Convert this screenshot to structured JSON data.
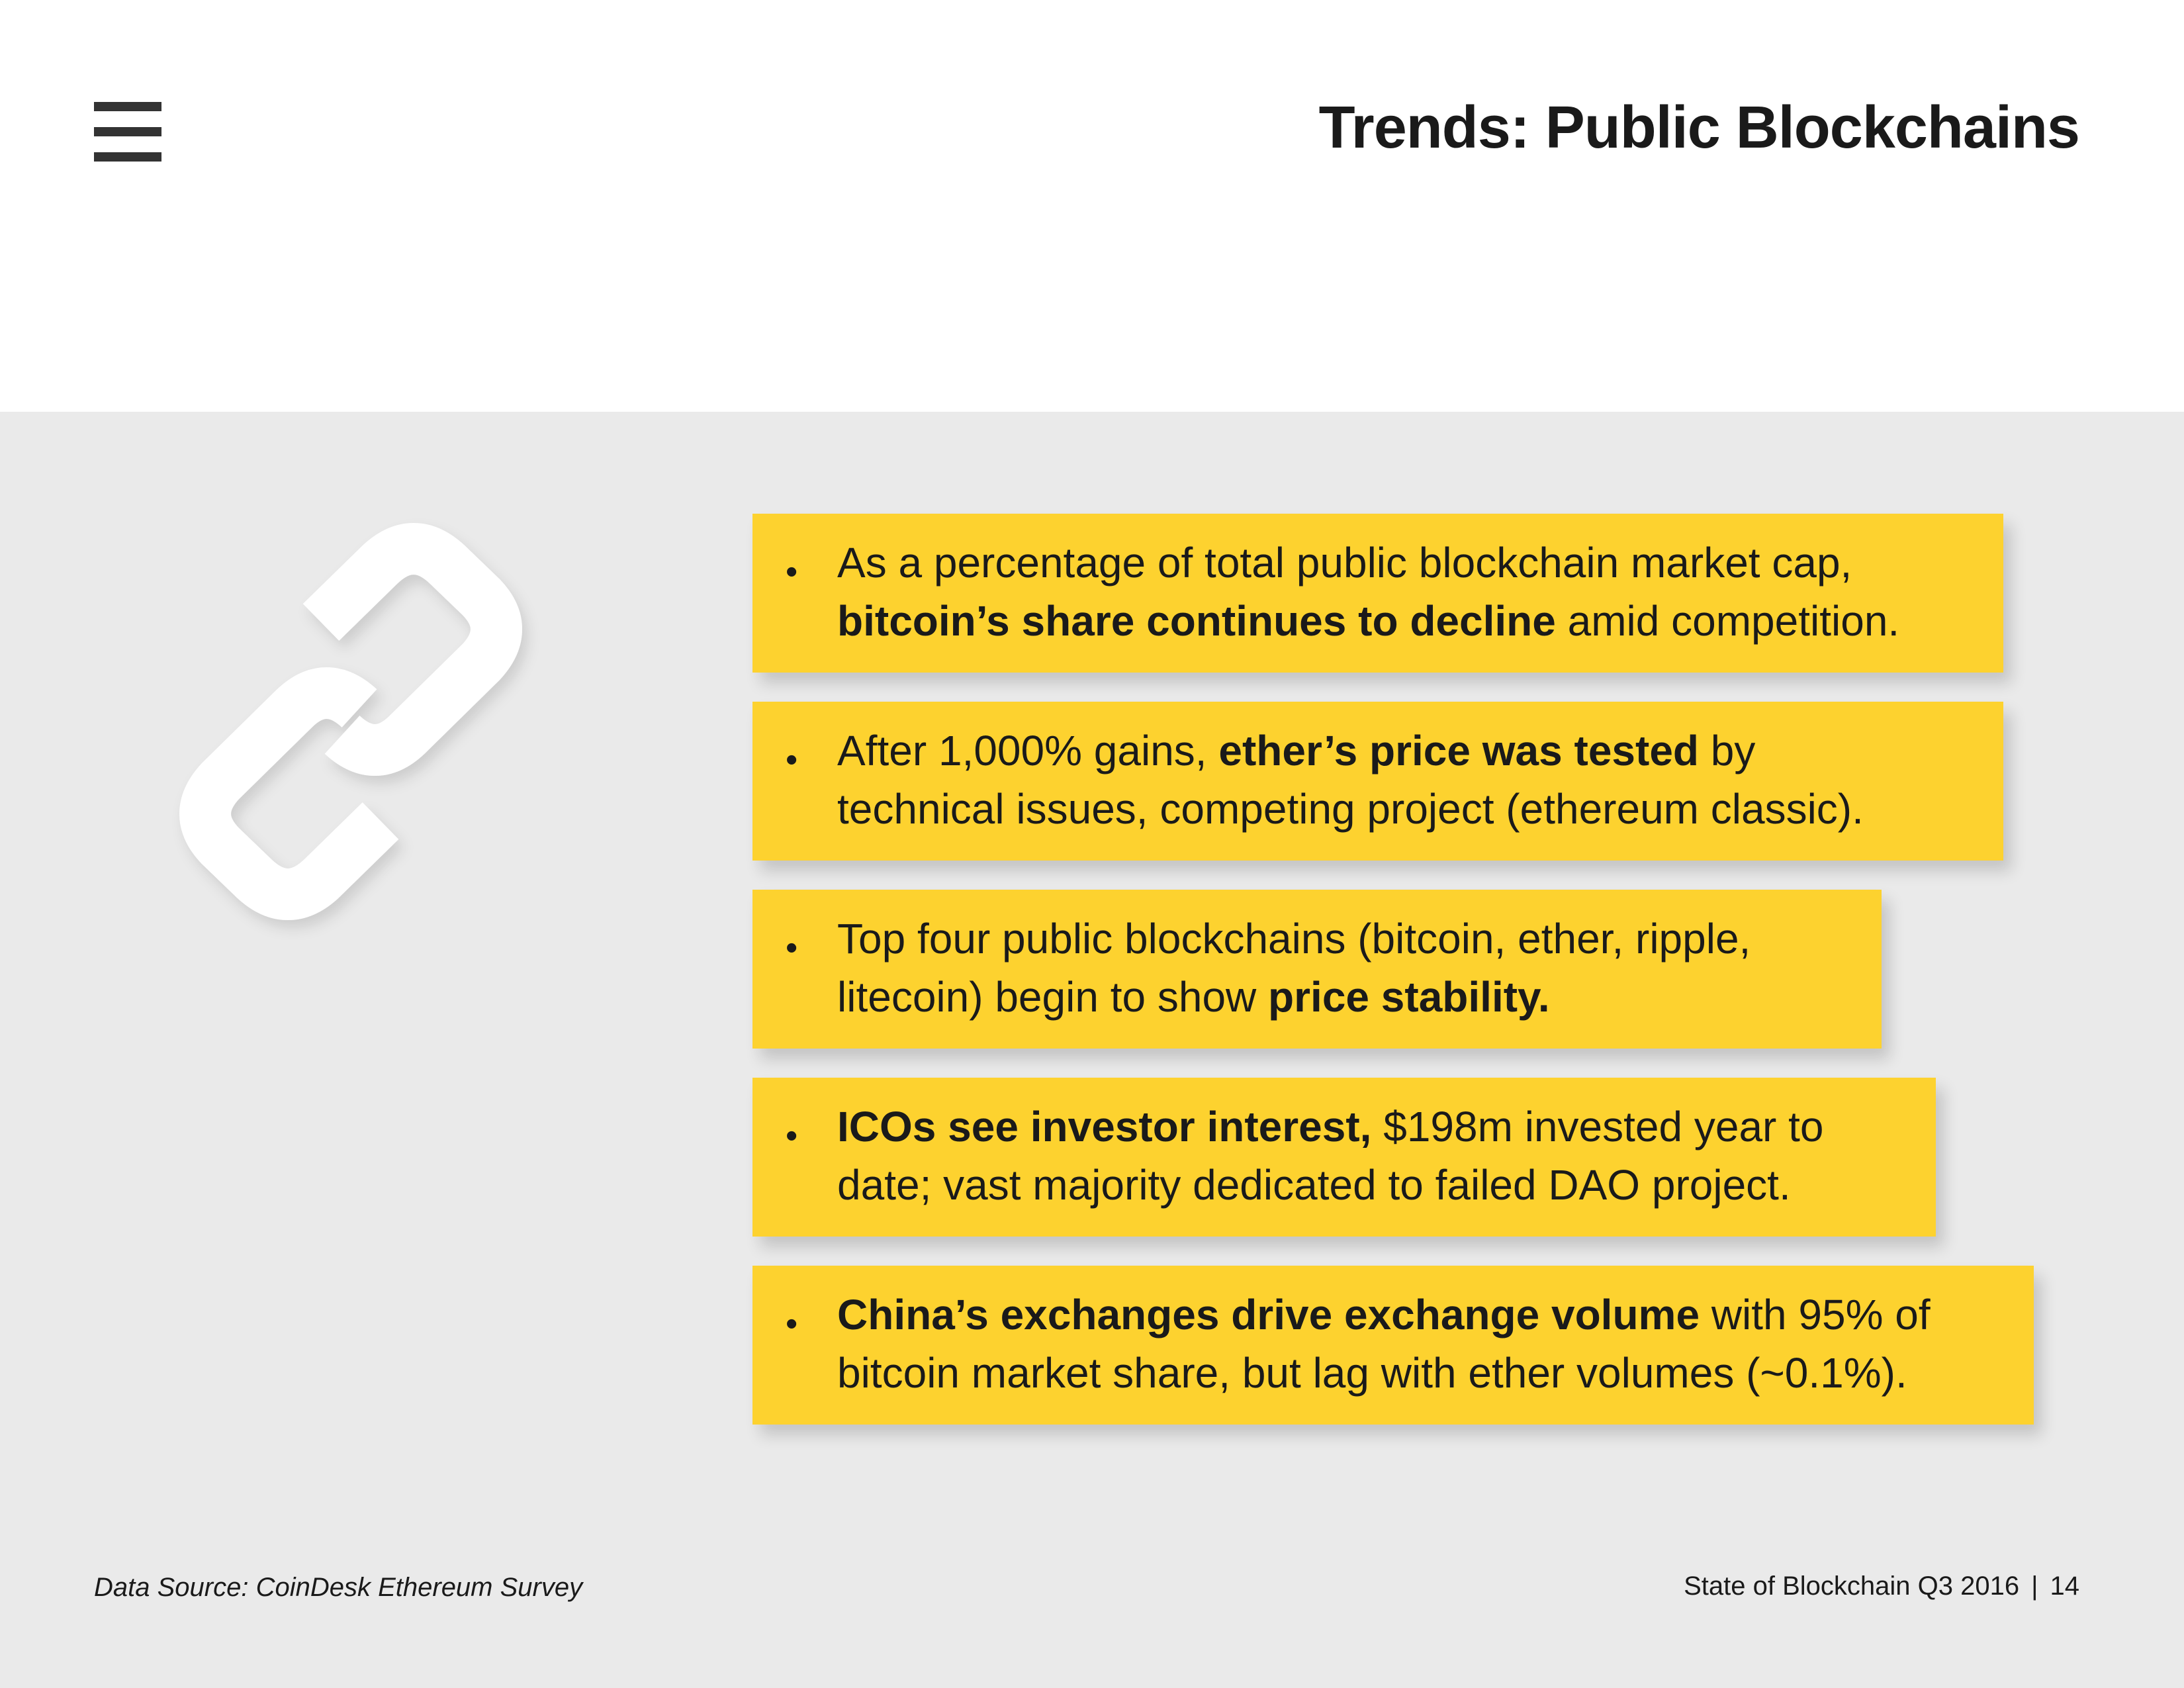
{
  "header": {
    "title": "Trends: Public Blockchains",
    "menu_icon": "menu-icon"
  },
  "decoration": {
    "icon": "chain-link-icon"
  },
  "points": [
    {
      "l1": [
        {
          "t": "As a percentage of total public blockchain market cap,",
          "b": false
        }
      ],
      "l2": [
        {
          "t": "bitcoin’s share continues to decline",
          "b": true
        },
        {
          "t": " amid competition.",
          "b": false
        }
      ]
    },
    {
      "l1": [
        {
          "t": "After 1,000% gains, ",
          "b": false
        },
        {
          "t": "ether’s price was tested",
          "b": true
        },
        {
          "t": " by",
          "b": false
        }
      ],
      "l2": [
        {
          "t": "technical issues, competing project (ethereum classic).",
          "b": false
        }
      ]
    },
    {
      "l1": [
        {
          "t": "Top four public blockchains (bitcoin, ether, ripple,",
          "b": false
        }
      ],
      "l2": [
        {
          "t": "litecoin) begin to show ",
          "b": false
        },
        {
          "t": "price stability.",
          "b": true
        }
      ]
    },
    {
      "l1": [
        {
          "t": "ICOs see investor interest,",
          "b": true
        },
        {
          "t": " $198m invested year to",
          "b": false
        }
      ],
      "l2": [
        {
          "t": "date; vast majority dedicated to failed DAO project.",
          "b": false
        }
      ]
    },
    {
      "l1": [
        {
          "t": "China’s exchanges drive exchange volume",
          "b": true
        },
        {
          "t": " with 95% of",
          "b": false
        }
      ],
      "l2": [
        {
          "t": "bitcoin market share, but lag with ether volumes (~0.1%).",
          "b": false
        }
      ]
    }
  ],
  "footer": {
    "source": "Data Source: CoinDesk Ethereum Survey",
    "report": "State of Blockchain Q3 2016",
    "separator": "|",
    "page_number": "14"
  },
  "colors": {
    "card": "#fdd22f",
    "body_bg": "#eaeaea",
    "text": "#1a1a1a"
  }
}
